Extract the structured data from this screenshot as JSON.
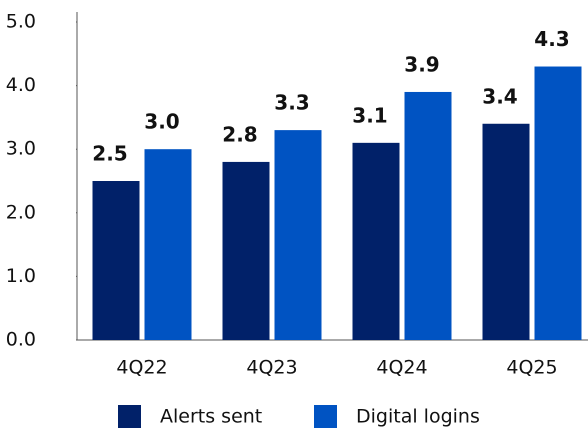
{
  "chart_data": {
    "type": "bar",
    "categories": [
      "4Q22",
      "4Q23",
      "4Q24",
      "4Q25"
    ],
    "series": [
      {
        "name": "Alerts sent",
        "color": "#012169",
        "values": [
          2.5,
          2.8,
          3.1,
          3.4
        ],
        "value_labels": [
          "2.5",
          "2.8",
          "3.1",
          "3.4"
        ]
      },
      {
        "name": "Digital logins",
        "color": "#0053c2",
        "values": [
          3.0,
          3.3,
          3.9,
          4.3
        ],
        "value_labels": [
          "3.0",
          "3.3",
          "3.9",
          "4.3"
        ]
      }
    ],
    "ylim": [
      0,
      5
    ],
    "yticks": [
      {
        "value": 0,
        "label": "0.0"
      },
      {
        "value": 1,
        "label": "1.0"
      },
      {
        "value": 2,
        "label": "2.0"
      },
      {
        "value": 3,
        "label": "3.0"
      },
      {
        "value": 4,
        "label": "4.0"
      },
      {
        "value": 5,
        "label": "5.0"
      }
    ],
    "grid": false,
    "legend": "bottom"
  }
}
